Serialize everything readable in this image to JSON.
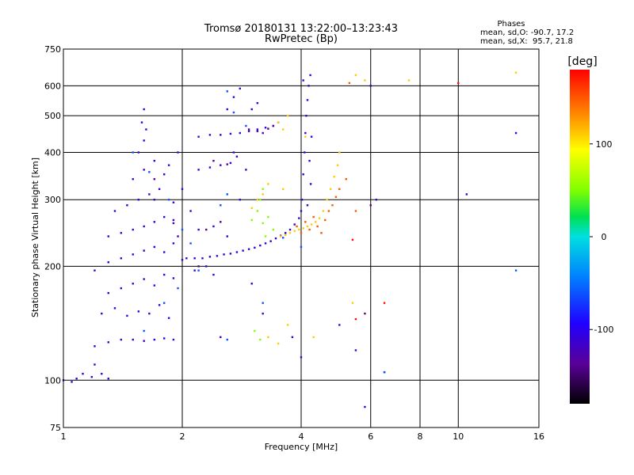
{
  "chart_data": {
    "type": "scatter",
    "title": "Tromsø 20180131 13:22:00–13:23:43",
    "subtitle": "RwPretec (Bp)",
    "xlabel": "Frequency [MHz]",
    "ylabel": "Stationary phase Virtual Height [km]",
    "x_scale": "log",
    "y_scale": "log",
    "xlim": [
      1,
      16
    ],
    "ylim": [
      75,
      750
    ],
    "x_ticks": [
      1,
      2,
      4,
      6,
      8,
      10,
      16
    ],
    "x_tick_labels": [
      "1",
      "2",
      "4",
      "6",
      "8",
      "10",
      "16"
    ],
    "y_ticks": [
      75,
      100,
      200,
      300,
      400,
      500,
      600,
      750
    ],
    "y_tick_labels": [
      "75",
      "100",
      "200",
      "300",
      "400",
      "500",
      "600",
      "750"
    ],
    "grid": true,
    "stats": {
      "heading": "Phases",
      "line1": "mean, sd,O: -90.7, 17.2",
      "line2": "mean, sd,X:  95.7, 21.8"
    },
    "colorbar": {
      "label": "[deg]",
      "range": [
        -180,
        180
      ],
      "ticks": [
        100,
        0,
        -100
      ],
      "tick_labels": [
        "100",
        "0",
        "-100"
      ],
      "colormap": "rainbow"
    },
    "series": [
      {
        "color_value": -110,
        "points": [
          [
            1.0,
            100
          ],
          [
            1.05,
            99
          ],
          [
            1.08,
            101
          ],
          [
            1.12,
            104
          ],
          [
            1.18,
            102
          ],
          [
            1.25,
            104
          ],
          [
            1.3,
            101
          ],
          [
            1.2,
            110
          ],
          [
            1.2,
            123
          ],
          [
            1.3,
            126
          ],
          [
            1.4,
            128
          ],
          [
            1.5,
            128
          ],
          [
            1.6,
            127
          ],
          [
            1.7,
            128
          ],
          [
            1.8,
            129
          ],
          [
            1.9,
            128
          ],
          [
            1.25,
            150
          ],
          [
            1.35,
            155
          ],
          [
            1.45,
            148
          ],
          [
            1.55,
            152
          ],
          [
            1.65,
            150
          ],
          [
            1.75,
            158
          ],
          [
            1.85,
            146
          ],
          [
            1.3,
            170
          ],
          [
            1.4,
            175
          ],
          [
            1.5,
            180
          ],
          [
            1.6,
            185
          ],
          [
            1.7,
            178
          ],
          [
            1.8,
            190
          ],
          [
            1.9,
            186
          ],
          [
            1.2,
            195
          ],
          [
            1.3,
            205
          ],
          [
            1.4,
            210
          ],
          [
            1.5,
            215
          ],
          [
            1.6,
            220
          ],
          [
            1.7,
            225
          ],
          [
            1.8,
            218
          ],
          [
            1.9,
            230
          ],
          [
            2.0,
            208
          ],
          [
            1.3,
            240
          ],
          [
            1.4,
            245
          ],
          [
            1.5,
            250
          ],
          [
            1.6,
            255
          ],
          [
            1.7,
            262
          ],
          [
            1.8,
            270
          ],
          [
            1.9,
            265
          ],
          [
            1.35,
            280
          ],
          [
            1.45,
            290
          ],
          [
            1.55,
            300
          ],
          [
            1.65,
            310
          ],
          [
            1.75,
            320
          ],
          [
            1.5,
            340
          ],
          [
            1.6,
            360
          ],
          [
            1.7,
            380
          ],
          [
            1.55,
            400
          ],
          [
            1.6,
            430
          ],
          [
            1.62,
            460
          ],
          [
            1.58,
            480
          ],
          [
            1.6,
            520
          ],
          [
            1.8,
            350
          ],
          [
            1.85,
            370
          ],
          [
            1.95,
            400
          ],
          [
            2.1,
            280
          ],
          [
            2.0,
            320
          ],
          [
            2.05,
            210
          ],
          [
            2.15,
            210
          ],
          [
            2.25,
            210
          ],
          [
            2.35,
            212
          ],
          [
            2.45,
            213
          ],
          [
            2.55,
            215
          ],
          [
            2.65,
            216
          ],
          [
            2.75,
            218
          ],
          [
            2.85,
            220
          ],
          [
            2.95,
            222
          ],
          [
            3.05,
            224
          ],
          [
            3.15,
            227
          ],
          [
            3.25,
            230
          ],
          [
            3.35,
            233
          ],
          [
            3.45,
            237
          ],
          [
            3.55,
            241
          ],
          [
            3.65,
            245
          ],
          [
            3.75,
            250
          ],
          [
            3.85,
            258
          ],
          [
            3.95,
            268
          ],
          [
            4.0,
            280
          ],
          [
            4.02,
            300
          ],
          [
            4.05,
            350
          ],
          [
            4.08,
            400
          ],
          [
            4.1,
            450
          ],
          [
            4.12,
            500
          ],
          [
            4.15,
            550
          ],
          [
            4.18,
            600
          ],
          [
            4.22,
            640
          ],
          [
            4.05,
            620
          ],
          [
            4.25,
            440
          ],
          [
            4.2,
            380
          ],
          [
            4.23,
            330
          ],
          [
            4.15,
            290
          ],
          [
            2.2,
            440
          ],
          [
            2.35,
            445
          ],
          [
            2.5,
            445
          ],
          [
            2.65,
            448
          ],
          [
            2.8,
            450
          ],
          [
            2.95,
            455
          ],
          [
            3.1,
            460
          ],
          [
            3.25,
            465
          ],
          [
            3.4,
            470
          ],
          [
            3.5,
            480
          ],
          [
            2.2,
            360
          ],
          [
            2.35,
            365
          ],
          [
            2.5,
            370
          ],
          [
            2.65,
            375
          ],
          [
            2.6,
            520
          ],
          [
            2.7,
            560
          ],
          [
            2.8,
            590
          ],
          [
            3.0,
            520
          ],
          [
            3.1,
            540
          ],
          [
            2.2,
            250
          ],
          [
            2.4,
            255
          ],
          [
            2.6,
            240
          ],
          [
            2.15,
            195
          ],
          [
            2.3,
            200
          ],
          [
            2.4,
            190
          ],
          [
            2.5,
            130
          ],
          [
            3.0,
            180
          ],
          [
            3.2,
            150
          ],
          [
            3.8,
            130
          ],
          [
            4.0,
            115
          ],
          [
            5.0,
            140
          ],
          [
            5.5,
            120
          ],
          [
            6.5,
            105
          ],
          [
            5.8,
            85
          ],
          [
            6.0,
            600
          ],
          [
            6.2,
            300
          ],
          [
            10.5,
            310
          ],
          [
            14.0,
            450
          ],
          [
            2.7,
            400
          ],
          [
            2.9,
            360
          ],
          [
            2.8,
            300
          ],
          [
            1.7,
            300
          ],
          [
            1.9,
            295
          ],
          [
            1.95,
            240
          ]
        ]
      },
      {
        "color_value": -140,
        "points": [
          [
            2.95,
            460
          ],
          [
            3.1,
            455
          ],
          [
            3.2,
            450
          ],
          [
            3.3,
            462
          ],
          [
            3.4,
            470
          ],
          [
            2.4,
            380
          ],
          [
            2.6,
            372
          ],
          [
            2.75,
            390
          ],
          [
            2.3,
            250
          ],
          [
            2.5,
            262
          ],
          [
            2.2,
            200
          ],
          [
            1.9,
            260
          ],
          [
            1.7,
            340
          ],
          [
            6.0,
            290
          ],
          [
            5.8,
            150
          ]
        ]
      },
      {
        "color_value": -60,
        "points": [
          [
            1.5,
            400
          ],
          [
            1.65,
            355
          ],
          [
            1.85,
            300
          ],
          [
            2.0,
            250
          ],
          [
            2.1,
            230
          ],
          [
            1.95,
            175
          ],
          [
            1.8,
            160
          ],
          [
            1.6,
            135
          ],
          [
            2.6,
            580
          ],
          [
            2.7,
            510
          ],
          [
            2.9,
            470
          ],
          [
            3.2,
            160
          ],
          [
            2.2,
            195
          ],
          [
            2.6,
            128
          ],
          [
            6.5,
            105
          ],
          [
            14.0,
            195
          ],
          [
            4.0,
            225
          ],
          [
            3.6,
            238
          ],
          [
            2.6,
            310
          ],
          [
            2.5,
            290
          ]
        ]
      },
      {
        "color_value": 50,
        "points": [
          [
            3.2,
            260
          ],
          [
            3.1,
            280
          ],
          [
            3.15,
            300
          ],
          [
            3.3,
            270
          ],
          [
            3.4,
            250
          ],
          [
            3.0,
            265
          ],
          [
            3.25,
            240
          ],
          [
            3.05,
            135
          ],
          [
            3.15,
            128
          ],
          [
            3.2,
            320
          ]
        ]
      },
      {
        "color_value": 110,
        "points": [
          [
            3.0,
            285
          ],
          [
            3.1,
            300
          ],
          [
            3.2,
            310
          ],
          [
            3.3,
            330
          ],
          [
            3.6,
            320
          ],
          [
            3.5,
            480
          ],
          [
            3.6,
            460
          ],
          [
            3.7,
            500
          ],
          [
            3.55,
            240
          ],
          [
            3.65,
            242
          ],
          [
            3.75,
            245
          ],
          [
            3.85,
            248
          ],
          [
            3.95,
            250
          ],
          [
            4.05,
            252
          ],
          [
            4.15,
            255
          ],
          [
            4.25,
            258
          ],
          [
            4.35,
            262
          ],
          [
            4.45,
            268
          ],
          [
            4.55,
            280
          ],
          [
            4.65,
            300
          ],
          [
            4.75,
            320
          ],
          [
            4.85,
            345
          ],
          [
            4.95,
            370
          ],
          [
            5.0,
            400
          ],
          [
            3.3,
            130
          ],
          [
            3.5,
            125
          ],
          [
            3.7,
            140
          ],
          [
            4.3,
            130
          ],
          [
            5.5,
            640
          ],
          [
            5.8,
            620
          ],
          [
            7.5,
            620
          ],
          [
            14.0,
            650
          ],
          [
            4.1,
            440
          ],
          [
            5.4,
            160
          ]
        ]
      },
      {
        "color_value": 150,
        "points": [
          [
            4.0,
            245
          ],
          [
            4.2,
            250
          ],
          [
            4.4,
            255
          ],
          [
            4.6,
            265
          ],
          [
            4.8,
            290
          ],
          [
            5.0,
            320
          ],
          [
            4.3,
            270
          ],
          [
            4.7,
            280
          ],
          [
            4.1,
            262
          ],
          [
            4.5,
            245
          ],
          [
            3.9,
            255
          ],
          [
            5.2,
            340
          ],
          [
            4.9,
            305
          ],
          [
            5.5,
            280
          ],
          [
            5.3,
            610
          ]
        ]
      },
      {
        "color_value": 175,
        "points": [
          [
            10.0,
            610
          ],
          [
            5.5,
            145
          ],
          [
            5.4,
            235
          ],
          [
            6.5,
            160
          ]
        ]
      }
    ]
  }
}
